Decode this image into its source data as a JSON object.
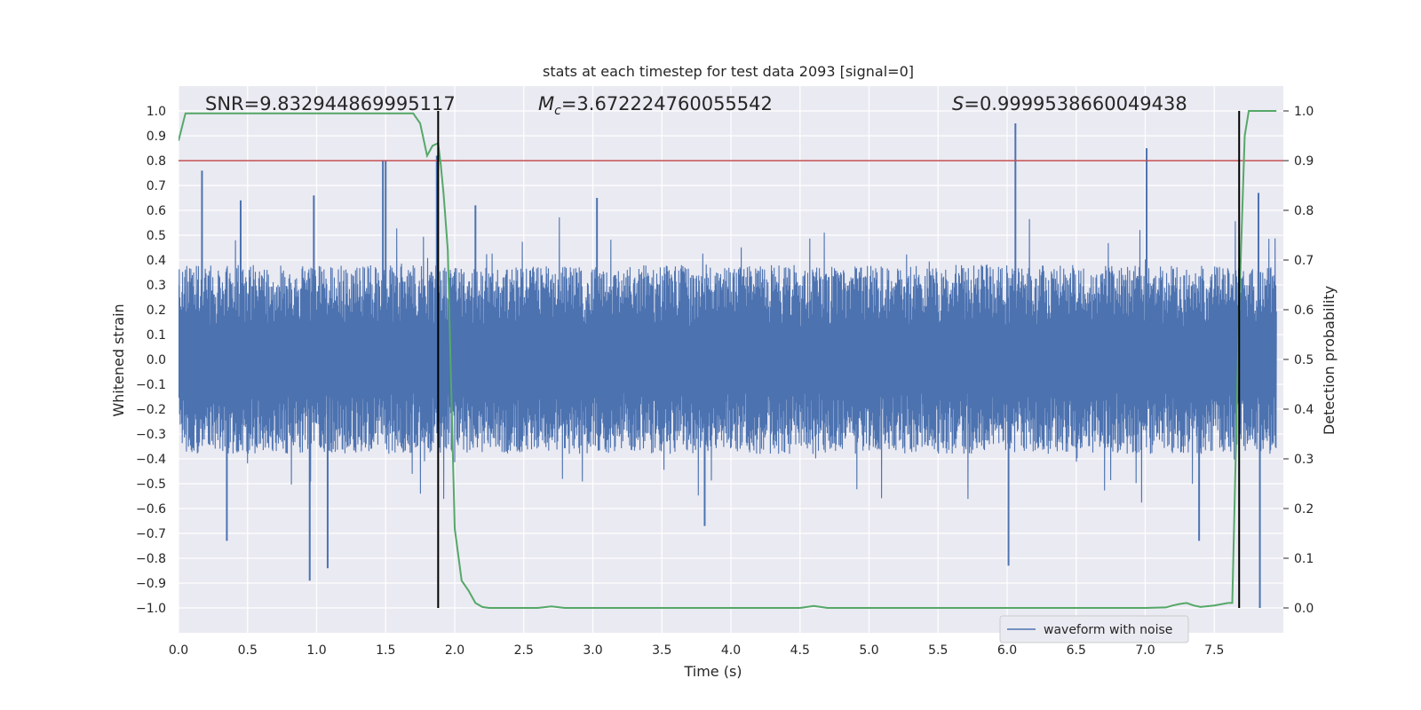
{
  "chart_data": {
    "type": "line",
    "title": "stats at each timestep for test data 2093 [signal=0]",
    "xlabel": "Time (s)",
    "ylabel_left": "Whitened strain",
    "ylabel_right": "Detection probability",
    "xlim": [
      0,
      8
    ],
    "ylim_left": [
      -1.1,
      1.1
    ],
    "ylim_right": [
      -0.05,
      1.05
    ],
    "x_ticks": [
      0,
      0.5,
      1,
      1.5,
      2,
      2.5,
      3,
      3.5,
      4,
      4.5,
      5,
      5.5,
      6,
      6.5,
      7,
      7.5
    ],
    "x_tick_labels": [
      "0.0",
      "0.5",
      "1.0",
      "1.5",
      "2.0",
      "2.5",
      "3.0",
      "3.5",
      "4.0",
      "4.5",
      "5.0",
      "5.5",
      "6.0",
      "6.5",
      "7.0",
      "7.5"
    ],
    "y_left_ticks": [
      -1.0,
      -0.9,
      -0.8,
      -0.7,
      -0.6,
      -0.5,
      -0.4,
      -0.3,
      -0.2,
      -0.1,
      0.0,
      0.1,
      0.2,
      0.3,
      0.4,
      0.5,
      0.6,
      0.7,
      0.8,
      0.9,
      1.0
    ],
    "y_left_tick_labels": [
      "−1.0",
      "−0.9",
      "−0.8",
      "−0.7",
      "−0.6",
      "−0.5",
      "−0.4",
      "−0.3",
      "−0.2",
      "−0.1",
      "0.0",
      "0.1",
      "0.2",
      "0.3",
      "0.4",
      "0.5",
      "0.6",
      "0.7",
      "0.8",
      "0.9",
      "1.0"
    ],
    "y_right_ticks": [
      0.0,
      0.1,
      0.2,
      0.3,
      0.4,
      0.5,
      0.6,
      0.7,
      0.8,
      0.9,
      1.0
    ],
    "y_right_tick_labels": [
      "0.0",
      "0.1",
      "0.2",
      "0.3",
      "0.4",
      "0.5",
      "0.6",
      "0.7",
      "0.8",
      "0.9",
      "1.0"
    ],
    "annotations": {
      "snr_text": "SNR=9.832944869995117",
      "mc_symbol": "M",
      "mc_subscript": "c",
      "mc_value": "=3.672224760055542",
      "s_symbol": "S",
      "s_value": "=0.9999538660049438"
    },
    "threshold": {
      "axis": "right",
      "value": 0.9,
      "color": "#c44e52"
    },
    "vertical_markers": [
      1.88,
      7.68
    ],
    "waveform": {
      "name": "waveform with noise",
      "color": "#4c72b0",
      "envelope_typical": 0.38,
      "spikes": [
        {
          "x": 0.17,
          "y": 0.76
        },
        {
          "x": 0.35,
          "y": -0.73
        },
        {
          "x": 0.45,
          "y": 0.64
        },
        {
          "x": 0.95,
          "y": -0.89
        },
        {
          "x": 0.98,
          "y": 0.66
        },
        {
          "x": 1.08,
          "y": -0.84
        },
        {
          "x": 1.48,
          "y": 0.8
        },
        {
          "x": 1.5,
          "y": 0.8
        },
        {
          "x": 1.87,
          "y": 0.82
        },
        {
          "x": 2.15,
          "y": 0.62
        },
        {
          "x": 3.03,
          "y": 0.65
        },
        {
          "x": 3.81,
          "y": -0.67
        },
        {
          "x": 6.01,
          "y": -0.83
        },
        {
          "x": 6.06,
          "y": 0.95
        },
        {
          "x": 7.01,
          "y": 0.85
        },
        {
          "x": 7.39,
          "y": -0.73
        },
        {
          "x": 7.83,
          "y": -1.0
        },
        {
          "x": 7.82,
          "y": 0.67
        }
      ]
    },
    "probability": {
      "name": "detection probability",
      "color": "#55a868",
      "x": [
        0.0,
        0.05,
        0.1,
        0.15,
        0.2,
        0.3,
        0.4,
        0.5,
        0.6,
        0.7,
        0.8,
        0.9,
        1.0,
        1.1,
        1.2,
        1.3,
        1.4,
        1.5,
        1.6,
        1.7,
        1.75,
        1.8,
        1.84,
        1.88,
        1.9,
        1.92,
        1.95,
        2.0,
        2.05,
        2.1,
        2.15,
        2.2,
        2.25,
        2.3,
        2.4,
        2.5,
        2.6,
        2.7,
        2.8,
        3.0,
        3.2,
        3.5,
        4.0,
        4.5,
        4.6,
        4.7,
        5.0,
        5.5,
        6.0,
        6.5,
        7.0,
        7.15,
        7.2,
        7.25,
        7.3,
        7.35,
        7.4,
        7.5,
        7.6,
        7.63,
        7.68,
        7.72,
        7.75,
        7.8,
        7.85,
        7.95
      ],
      "y": [
        0.94,
        0.995,
        0.995,
        0.995,
        0.995,
        0.995,
        0.995,
        0.995,
        0.995,
        0.995,
        0.995,
        0.995,
        0.995,
        0.995,
        0.995,
        0.995,
        0.995,
        0.995,
        0.995,
        0.995,
        0.975,
        0.91,
        0.93,
        0.935,
        0.89,
        0.83,
        0.72,
        0.16,
        0.055,
        0.035,
        0.01,
        0.002,
        0.0,
        0.0,
        0.0,
        0.0,
        0.0,
        0.003,
        0.0,
        0.0,
        0.0,
        0.0,
        0.0,
        0.0,
        0.004,
        0.0,
        0.0,
        0.0,
        0.0,
        0.0,
        0.0,
        0.001,
        0.005,
        0.008,
        0.01,
        0.005,
        0.002,
        0.005,
        0.01,
        0.01,
        0.6,
        0.95,
        1.0,
        1.0,
        1.0,
        1.0
      ]
    },
    "legend": {
      "label": "waveform with noise",
      "placement": "lower-right"
    }
  }
}
